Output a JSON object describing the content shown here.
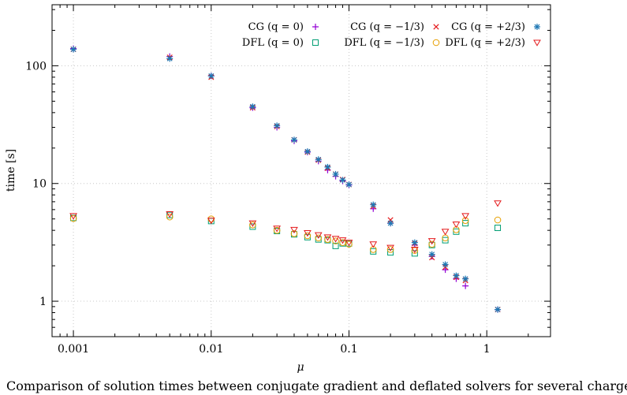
{
  "chart_data": {
    "type": "scatter",
    "title": "",
    "xlabel": "μ",
    "ylabel": "time [s]",
    "xscale": "log",
    "yscale": "log",
    "xlim": [
      0.0007,
      2.9
    ],
    "ylim": [
      0.5,
      330
    ],
    "x_ticks": [
      {
        "value": 0.001,
        "label": "0.001"
      },
      {
        "value": 0.01,
        "label": "0.01"
      },
      {
        "value": 0.1,
        "label": "0.1"
      },
      {
        "value": 1,
        "label": "1"
      }
    ],
    "y_ticks": [
      {
        "value": 1,
        "label": "1"
      },
      {
        "value": 10,
        "label": "10"
      },
      {
        "value": 100,
        "label": "100"
      }
    ],
    "grid": true,
    "legend_position": "top-right",
    "series": [
      {
        "name": "CG (q = 0)",
        "marker": "plus",
        "color": "#9400d3",
        "points": [
          [
            0.001,
            140
          ],
          [
            0.005,
            120
          ],
          [
            0.01,
            82
          ],
          [
            0.02,
            44
          ],
          [
            0.03,
            30
          ],
          [
            0.04,
            23
          ],
          [
            0.05,
            18.5
          ],
          [
            0.06,
            15.5
          ],
          [
            0.07,
            13
          ],
          [
            0.08,
            11.5
          ],
          [
            0.09,
            10.5
          ],
          [
            0.1,
            9.7
          ],
          [
            0.15,
            6.1
          ],
          [
            0.2,
            4.6
          ],
          [
            0.3,
            3.0
          ],
          [
            0.4,
            2.4
          ],
          [
            0.5,
            1.85
          ],
          [
            0.6,
            1.55
          ],
          [
            0.7,
            1.35
          ],
          [
            1.2,
            0.85
          ]
        ]
      },
      {
        "name": "CG (q = −1/3)",
        "marker": "cross",
        "color": "#e41a1c",
        "points": [
          [
            0.001,
            138
          ],
          [
            0.005,
            118
          ],
          [
            0.01,
            80
          ],
          [
            0.02,
            44
          ],
          [
            0.03,
            30.5
          ],
          [
            0.04,
            23.5
          ],
          [
            0.05,
            18.5
          ],
          [
            0.06,
            15.8
          ],
          [
            0.07,
            13.5
          ],
          [
            0.08,
            12
          ],
          [
            0.09,
            10.8
          ],
          [
            0.1,
            9.8
          ],
          [
            0.15,
            6.4
          ],
          [
            0.2,
            4.9
          ],
          [
            0.3,
            3.1
          ],
          [
            0.4,
            2.35
          ],
          [
            0.5,
            1.95
          ],
          [
            0.6,
            1.6
          ],
          [
            0.7,
            1.5
          ],
          [
            1.2,
            0.85
          ]
        ]
      },
      {
        "name": "CG (q = +2/3)",
        "marker": "star",
        "color": "#1f78b4",
        "points": [
          [
            0.001,
            138
          ],
          [
            0.005,
            115
          ],
          [
            0.01,
            82
          ],
          [
            0.02,
            45
          ],
          [
            0.03,
            31
          ],
          [
            0.04,
            23.5
          ],
          [
            0.05,
            18.7
          ],
          [
            0.06,
            16
          ],
          [
            0.07,
            13.8
          ],
          [
            0.08,
            12
          ],
          [
            0.09,
            10.7
          ],
          [
            0.1,
            9.8
          ],
          [
            0.15,
            6.6
          ],
          [
            0.2,
            4.6
          ],
          [
            0.3,
            3.15
          ],
          [
            0.4,
            2.5
          ],
          [
            0.5,
            2.05
          ],
          [
            0.6,
            1.65
          ],
          [
            0.7,
            1.55
          ],
          [
            1.2,
            0.85
          ]
        ]
      },
      {
        "name": "DFL (q = 0)",
        "marker": "square",
        "color": "#009e73",
        "points": [
          [
            0.001,
            5.1
          ],
          [
            0.005,
            5.4
          ],
          [
            0.01,
            4.8
          ],
          [
            0.02,
            4.3
          ],
          [
            0.03,
            3.95
          ],
          [
            0.04,
            3.7
          ],
          [
            0.05,
            3.5
          ],
          [
            0.06,
            3.35
          ],
          [
            0.07,
            3.3
          ],
          [
            0.08,
            2.95
          ],
          [
            0.09,
            3.1
          ],
          [
            0.1,
            3.1
          ],
          [
            0.15,
            2.65
          ],
          [
            0.2,
            2.6
          ],
          [
            0.3,
            2.55
          ],
          [
            0.4,
            3.0
          ],
          [
            0.5,
            3.3
          ],
          [
            0.6,
            3.9
          ],
          [
            0.7,
            4.6
          ],
          [
            1.2,
            4.2
          ]
        ]
      },
      {
        "name": "DFL (q = −1/3)",
        "marker": "circle",
        "color": "#e69f00",
        "points": [
          [
            0.001,
            5.05
          ],
          [
            0.005,
            5.2
          ],
          [
            0.01,
            5.0
          ],
          [
            0.02,
            4.45
          ],
          [
            0.03,
            4.0
          ],
          [
            0.04,
            3.75
          ],
          [
            0.05,
            3.6
          ],
          [
            0.06,
            3.45
          ],
          [
            0.07,
            3.35
          ],
          [
            0.08,
            3.25
          ],
          [
            0.09,
            3.15
          ],
          [
            0.1,
            3.05
          ],
          [
            0.15,
            2.75
          ],
          [
            0.2,
            2.75
          ],
          [
            0.3,
            2.7
          ],
          [
            0.4,
            3.05
          ],
          [
            0.5,
            3.45
          ],
          [
            0.6,
            4.05
          ],
          [
            0.7,
            4.85
          ],
          [
            1.2,
            4.9
          ]
        ]
      },
      {
        "name": "DFL (q = +2/3)",
        "marker": "triangle-down",
        "color": "#e41a1c",
        "points": [
          [
            0.001,
            5.3
          ],
          [
            0.005,
            5.5
          ],
          [
            0.01,
            4.85
          ],
          [
            0.02,
            4.6
          ],
          [
            0.03,
            4.15
          ],
          [
            0.04,
            4.05
          ],
          [
            0.05,
            3.8
          ],
          [
            0.06,
            3.65
          ],
          [
            0.07,
            3.5
          ],
          [
            0.08,
            3.4
          ],
          [
            0.09,
            3.3
          ],
          [
            0.1,
            3.15
          ],
          [
            0.15,
            3.05
          ],
          [
            0.2,
            2.85
          ],
          [
            0.3,
            2.75
          ],
          [
            0.4,
            3.25
          ],
          [
            0.5,
            3.9
          ],
          [
            0.6,
            4.5
          ],
          [
            0.7,
            5.3
          ],
          [
            1.2,
            6.8
          ]
        ]
      }
    ]
  },
  "caption": "Comparison of solution times between conjugate gradient and deflated solvers for several charges"
}
